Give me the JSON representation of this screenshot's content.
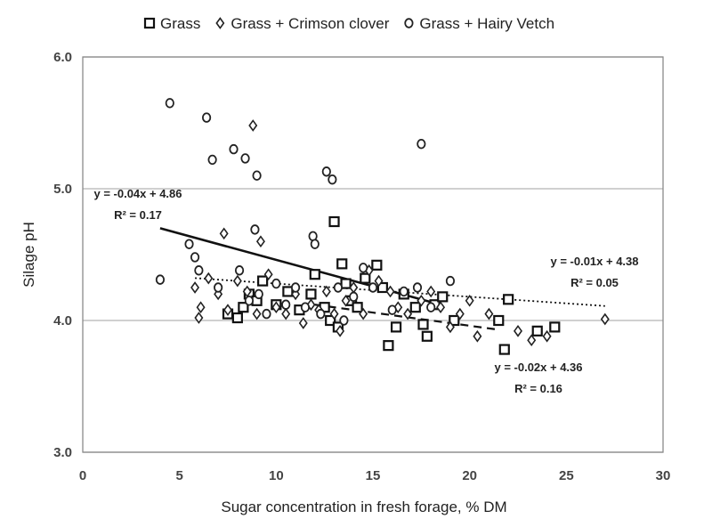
{
  "chart_data": {
    "type": "scatter",
    "xlabel": "Sugar concentration in fresh forage, % DM",
    "ylabel": "Silage pH",
    "xlim": [
      0,
      30
    ],
    "ylim": [
      3.0,
      6.0
    ],
    "x_ticks": [
      "0",
      "5",
      "10",
      "15",
      "20",
      "25",
      "30"
    ],
    "y_ticks": [
      "3.0",
      "4.0",
      "5.0",
      "6.0"
    ],
    "grid": "horizontal",
    "legend_position": "top",
    "series": [
      {
        "name": "Grass",
        "marker": "square",
        "points": [
          [
            7.5,
            4.05
          ],
          [
            8.0,
            4.02
          ],
          [
            8.3,
            4.1
          ],
          [
            8.6,
            4.2
          ],
          [
            9.0,
            4.15
          ],
          [
            9.3,
            4.3
          ],
          [
            10.0,
            4.12
          ],
          [
            10.6,
            4.22
          ],
          [
            11.2,
            4.08
          ],
          [
            11.8,
            4.2
          ],
          [
            12.0,
            4.35
          ],
          [
            12.5,
            4.1
          ],
          [
            12.8,
            4.0
          ],
          [
            13.0,
            4.75
          ],
          [
            13.2,
            3.95
          ],
          [
            13.4,
            4.43
          ],
          [
            13.6,
            4.28
          ],
          [
            13.9,
            4.15
          ],
          [
            14.2,
            4.1
          ],
          [
            14.6,
            4.32
          ],
          [
            15.2,
            4.42
          ],
          [
            15.5,
            4.25
          ],
          [
            15.8,
            3.81
          ],
          [
            16.2,
            3.95
          ],
          [
            16.6,
            4.2
          ],
          [
            17.2,
            4.1
          ],
          [
            17.6,
            3.97
          ],
          [
            17.8,
            3.88
          ],
          [
            18.2,
            4.12
          ],
          [
            18.6,
            4.18
          ],
          [
            19.2,
            4.0
          ],
          [
            21.8,
            3.78
          ],
          [
            22.0,
            4.16
          ],
          [
            23.5,
            3.92
          ],
          [
            24.4,
            3.95
          ],
          [
            21.5,
            4.0
          ]
        ]
      },
      {
        "name": "Grass + Crimson clover",
        "marker": "diamond",
        "points": [
          [
            5.8,
            4.25
          ],
          [
            6.0,
            4.02
          ],
          [
            6.1,
            4.1
          ],
          [
            6.5,
            4.32
          ],
          [
            7.0,
            4.2
          ],
          [
            7.3,
            4.66
          ],
          [
            7.5,
            4.08
          ],
          [
            8.0,
            4.3
          ],
          [
            8.5,
            4.22
          ],
          [
            8.8,
            5.48
          ],
          [
            9.0,
            4.05
          ],
          [
            9.2,
            4.6
          ],
          [
            9.6,
            4.35
          ],
          [
            10.0,
            4.1
          ],
          [
            10.5,
            4.05
          ],
          [
            11.0,
            4.2
          ],
          [
            11.4,
            3.98
          ],
          [
            11.8,
            4.12
          ],
          [
            12.2,
            4.08
          ],
          [
            12.6,
            4.22
          ],
          [
            13.0,
            4.05
          ],
          [
            13.3,
            3.92
          ],
          [
            13.6,
            4.15
          ],
          [
            14.0,
            4.25
          ],
          [
            14.5,
            4.05
          ],
          [
            14.8,
            4.38
          ],
          [
            15.3,
            4.3
          ],
          [
            15.9,
            4.22
          ],
          [
            16.3,
            4.1
          ],
          [
            16.8,
            4.05
          ],
          [
            17.5,
            4.15
          ],
          [
            18.0,
            4.22
          ],
          [
            18.5,
            4.1
          ],
          [
            19.0,
            3.95
          ],
          [
            19.5,
            4.05
          ],
          [
            20.0,
            4.15
          ],
          [
            20.4,
            3.88
          ],
          [
            21.0,
            4.05
          ],
          [
            22.5,
            3.92
          ],
          [
            23.2,
            3.85
          ],
          [
            24.0,
            3.88
          ],
          [
            27.0,
            4.01
          ]
        ]
      },
      {
        "name": "Grass + Hairy Vetch",
        "marker": "circle",
        "points": [
          [
            4.0,
            4.31
          ],
          [
            4.5,
            5.65
          ],
          [
            5.5,
            4.58
          ],
          [
            5.8,
            4.48
          ],
          [
            6.0,
            4.38
          ],
          [
            6.4,
            5.54
          ],
          [
            6.7,
            5.22
          ],
          [
            7.0,
            4.25
          ],
          [
            7.8,
            5.3
          ],
          [
            8.1,
            4.38
          ],
          [
            8.4,
            5.23
          ],
          [
            8.6,
            4.15
          ],
          [
            8.9,
            4.69
          ],
          [
            9.0,
            5.1
          ],
          [
            9.1,
            4.2
          ],
          [
            9.5,
            4.05
          ],
          [
            10.0,
            4.28
          ],
          [
            10.5,
            4.12
          ],
          [
            11.0,
            4.25
          ],
          [
            11.5,
            4.1
          ],
          [
            11.9,
            4.64
          ],
          [
            12.0,
            4.58
          ],
          [
            12.3,
            4.05
          ],
          [
            12.6,
            5.13
          ],
          [
            12.9,
            5.07
          ],
          [
            13.2,
            4.25
          ],
          [
            13.5,
            4.0
          ],
          [
            14.0,
            4.18
          ],
          [
            14.5,
            4.4
          ],
          [
            15.0,
            4.25
          ],
          [
            16.0,
            4.08
          ],
          [
            16.6,
            4.22
          ],
          [
            17.3,
            4.25
          ],
          [
            17.5,
            5.34
          ],
          [
            18.0,
            4.1
          ],
          [
            19.0,
            4.3
          ]
        ]
      }
    ],
    "trendlines": [
      {
        "series": "Grass",
        "label": "y = -0.04x + 4.86",
        "r2": "R² = 0.17",
        "slope": -0.04,
        "intercept": 4.86,
        "x_range": [
          4.0,
          18.5
        ],
        "style": "solid"
      },
      {
        "series": "Grass + Crimson clover",
        "label": "y = -0.01x + 4.38",
        "r2": "R² = 0.05",
        "slope": -0.01,
        "intercept": 4.38,
        "x_range": [
          5.8,
          27.0
        ],
        "style": "dotted"
      },
      {
        "series": "Grass + Hairy Vetch",
        "label": "y = -0.02x + 4.36",
        "r2": "R² = 0.16",
        "slope": -0.02,
        "intercept": 4.36,
        "x_range": [
          12.0,
          21.5
        ],
        "style": "dashed"
      }
    ]
  }
}
